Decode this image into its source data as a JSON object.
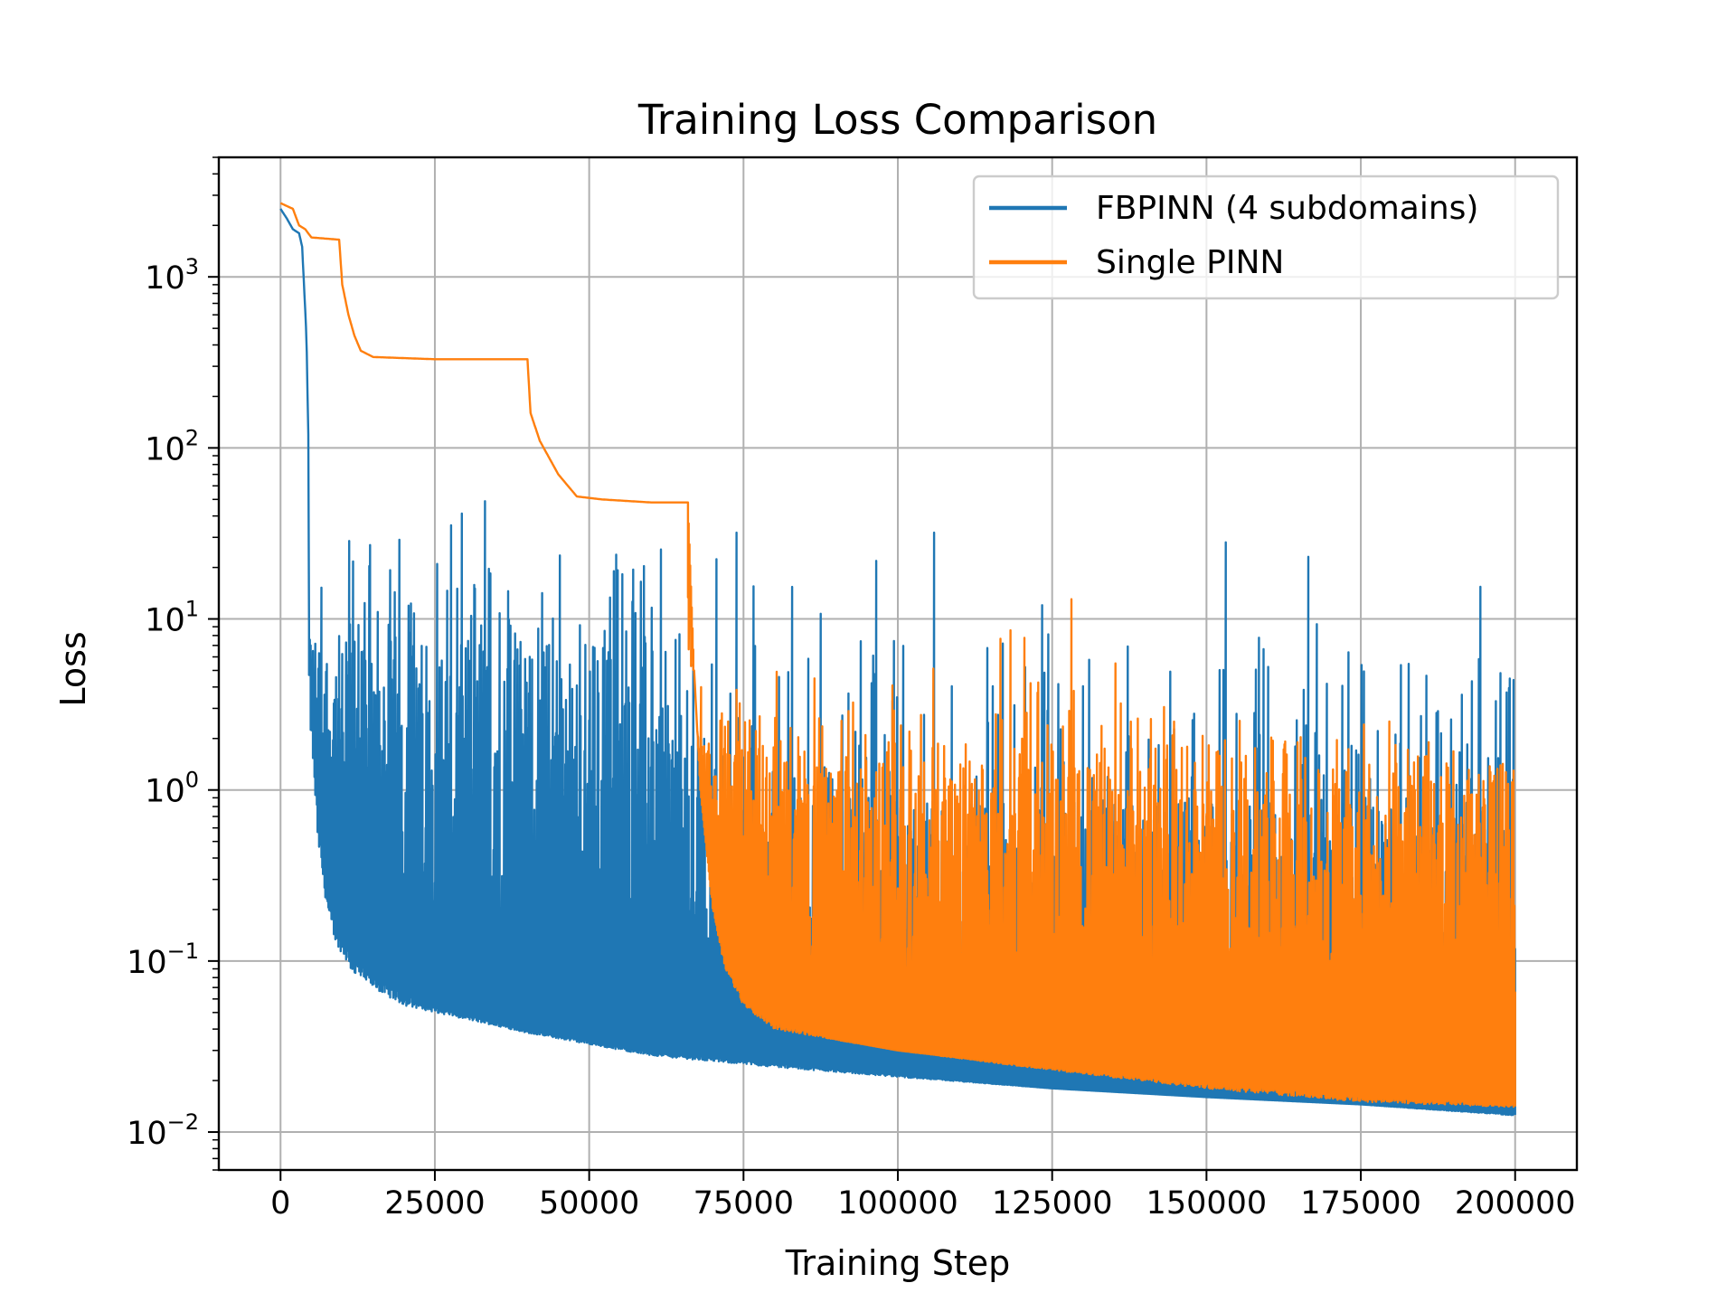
{
  "chart_data": {
    "type": "line",
    "title": "Training Loss Comparison",
    "xlabel": "Training Step",
    "ylabel": "Loss",
    "xlim": [
      -10000,
      210000
    ],
    "ylim": [
      0.006,
      5000
    ],
    "yscale": "log",
    "grid": true,
    "legend_position": "upper right",
    "x_ticks": [
      {
        "value": 0,
        "label": "0"
      },
      {
        "value": 25000,
        "label": "25000"
      },
      {
        "value": 50000,
        "label": "50000"
      },
      {
        "value": 75000,
        "label": "75000"
      },
      {
        "value": 100000,
        "label": "100000"
      },
      {
        "value": 125000,
        "label": "125000"
      },
      {
        "value": 150000,
        "label": "150000"
      },
      {
        "value": 175000,
        "label": "175000"
      },
      {
        "value": 200000,
        "label": "200000"
      }
    ],
    "y_ticks": [
      {
        "value": 0.01,
        "base": "10",
        "exp": "−2"
      },
      {
        "value": 0.1,
        "base": "10",
        "exp": "−1"
      },
      {
        "value": 1,
        "base": "10",
        "exp": "0"
      },
      {
        "value": 10,
        "base": "10",
        "exp": "1"
      },
      {
        "value": 100,
        "base": "10",
        "exp": "2"
      },
      {
        "value": 1000,
        "base": "10",
        "exp": "3"
      }
    ],
    "series": [
      {
        "name": "FBPINN (4 subdomains)",
        "color": "#1f77b4",
        "style": "noisy",
        "upper": [
          [
            0,
            2500
          ],
          [
            1000,
            2200
          ],
          [
            2000,
            1900
          ],
          [
            3000,
            1800
          ],
          [
            3500,
            1500
          ],
          [
            3800,
            900
          ],
          [
            4200,
            450
          ],
          [
            4500,
            120
          ],
          [
            4800,
            25
          ],
          [
            6000,
            40
          ],
          [
            10000,
            70
          ],
          [
            20000,
            35
          ],
          [
            30000,
            45
          ],
          [
            40000,
            70
          ],
          [
            50000,
            45
          ],
          [
            60000,
            45
          ],
          [
            75000,
            45
          ],
          [
            100000,
            50
          ],
          [
            125000,
            55
          ],
          [
            150000,
            40
          ],
          [
            175000,
            35
          ],
          [
            200000,
            25
          ]
        ],
        "lower": [
          [
            4600,
            10
          ],
          [
            5000,
            3
          ],
          [
            6000,
            0.8
          ],
          [
            7000,
            0.35
          ],
          [
            8000,
            0.22
          ],
          [
            10000,
            0.14
          ],
          [
            13000,
            0.1
          ],
          [
            17000,
            0.075
          ],
          [
            25000,
            0.055
          ],
          [
            40000,
            0.04
          ],
          [
            60000,
            0.03
          ],
          [
            75000,
            0.027
          ],
          [
            100000,
            0.022
          ],
          [
            125000,
            0.018
          ],
          [
            150000,
            0.016
          ],
          [
            175000,
            0.0145
          ],
          [
            200000,
            0.013
          ]
        ],
        "floor": [
          [
            5000,
            2
          ],
          [
            6000,
            0.5
          ],
          [
            8000,
            0.15
          ],
          [
            12000,
            0.08
          ],
          [
            20000,
            0.055
          ],
          [
            40000,
            0.038
          ],
          [
            60000,
            0.028
          ],
          [
            80000,
            0.024
          ],
          [
            100000,
            0.021
          ],
          [
            125000,
            0.018
          ],
          [
            150000,
            0.016
          ],
          [
            175000,
            0.0145
          ],
          [
            200000,
            0.0125
          ]
        ],
        "cap": [
          [
            5000,
            8
          ],
          [
            30000,
            8
          ],
          [
            60000,
            8
          ],
          [
            70000,
            0.9
          ],
          [
            80000,
            0.9
          ],
          [
            100000,
            0.9
          ],
          [
            150000,
            0.9
          ],
          [
            200000,
            0.9
          ]
        ],
        "floor_rand": 0.35,
        "floor_rand_end": 0
      },
      {
        "name": "Single PINN",
        "color": "#ff7f0e",
        "style": "noisy",
        "upper": [
          [
            0,
            2700
          ],
          [
            2000,
            2500
          ],
          [
            3000,
            2000
          ],
          [
            4000,
            1900
          ],
          [
            5000,
            1700
          ],
          [
            9500,
            1650
          ],
          [
            10000,
            900
          ],
          [
            11000,
            600
          ],
          [
            12000,
            450
          ],
          [
            13000,
            370
          ],
          [
            15000,
            340
          ],
          [
            25000,
            330
          ],
          [
            40000,
            330
          ],
          [
            40500,
            160
          ],
          [
            42000,
            110
          ],
          [
            45000,
            70
          ],
          [
            48000,
            52
          ],
          [
            52000,
            50
          ],
          [
            60000,
            48
          ],
          [
            66000,
            48
          ],
          [
            67000,
            10
          ],
          [
            70000,
            5
          ],
          [
            100000,
            5
          ],
          [
            130000,
            15
          ],
          [
            150000,
            3
          ],
          [
            175000,
            3
          ],
          [
            200000,
            1.5
          ]
        ],
        "lower": [
          [
            66000,
            48
          ],
          [
            67000,
            5
          ],
          [
            68000,
            1
          ],
          [
            69000,
            0.45
          ],
          [
            70000,
            0.22
          ],
          [
            72000,
            0.1
          ],
          [
            75000,
            0.06
          ],
          [
            80000,
            0.045
          ],
          [
            90000,
            0.035
          ],
          [
            100000,
            0.03
          ],
          [
            125000,
            0.024
          ],
          [
            150000,
            0.02
          ],
          [
            175000,
            0.017
          ],
          [
            200000,
            0.015
          ]
        ],
        "floor": [
          [
            67000,
            5
          ],
          [
            68000,
            1
          ],
          [
            70000,
            0.2
          ],
          [
            72000,
            0.09
          ],
          [
            75000,
            0.055
          ],
          [
            80000,
            0.04
          ],
          [
            100000,
            0.03
          ],
          [
            125000,
            0.023
          ],
          [
            150000,
            0.018
          ],
          [
            175000,
            0.015
          ],
          [
            200000,
            0.014
          ]
        ],
        "cap": [
          [
            67000,
            2
          ],
          [
            100000,
            1.5
          ],
          [
            200000,
            1.2
          ]
        ],
        "floor_rand": 0.5,
        "floor_rand_end": 0.15
      }
    ]
  }
}
